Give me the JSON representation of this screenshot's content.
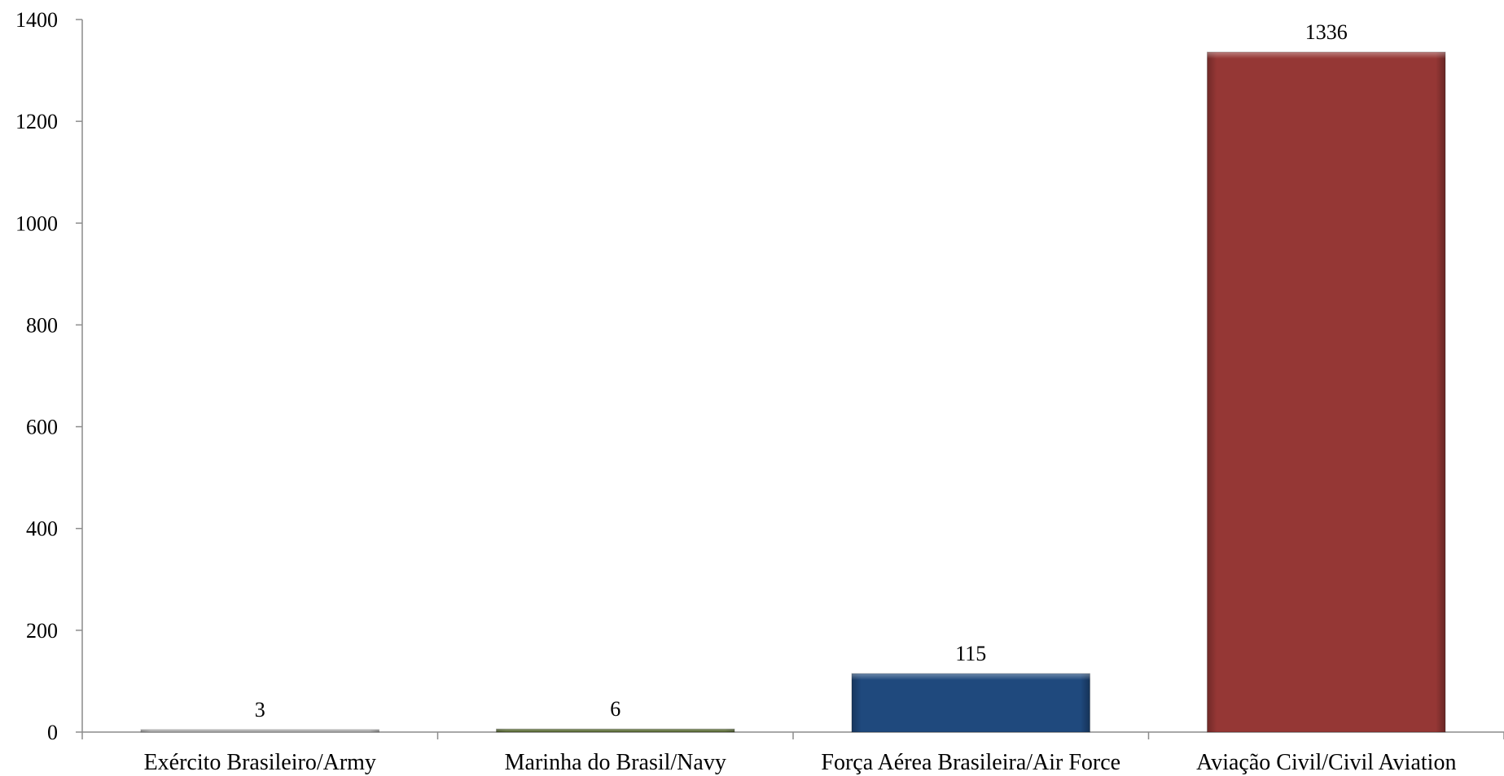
{
  "chart_data": {
    "type": "bar",
    "categories": [
      "Exército Brasileiro/Army",
      "Marinha do Brasil/Navy",
      "Força Aérea Brasileira/Air Force",
      "Aviação Civil/Civil Aviation"
    ],
    "values": [
      3,
      6,
      115,
      1336
    ],
    "data_labels": [
      "3",
      "6",
      "115",
      "1336"
    ],
    "bar_colors": [
      "#a6a6a6",
      "#4f6228",
      "#1f497d",
      "#953735"
    ],
    "ylim": [
      0,
      1400
    ],
    "yticks": [
      0,
      200,
      400,
      600,
      800,
      1000,
      1200,
      1400
    ],
    "ytick_labels": [
      "0",
      "200",
      "400",
      "600",
      "800",
      "1000",
      "1200",
      "1400"
    ],
    "grid": false,
    "legend": "none",
    "title": "",
    "xlabel": "",
    "ylabel": ""
  }
}
